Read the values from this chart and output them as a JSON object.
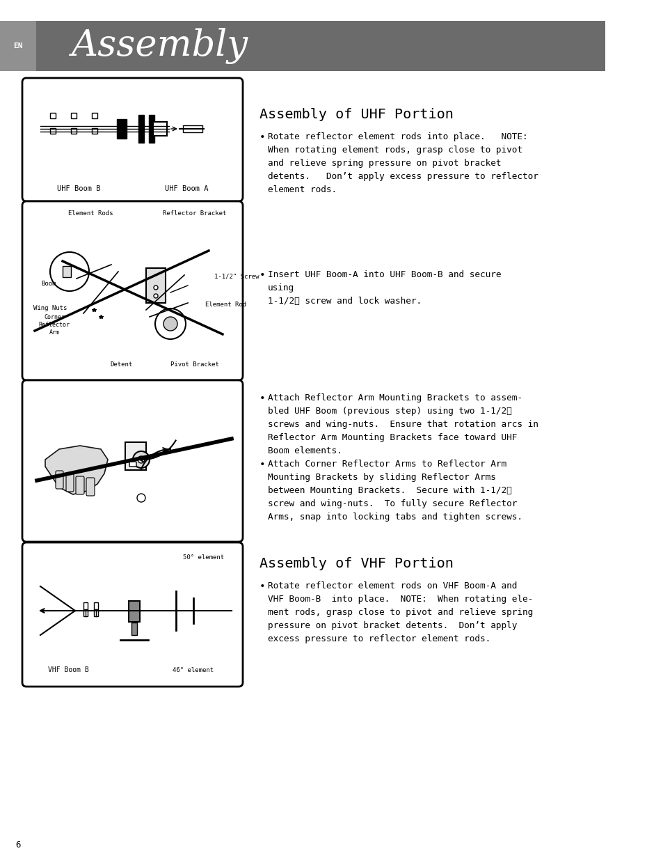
{
  "page_bg": "#ffffff",
  "header_bg": "#6b6b6b",
  "header_light_bg": "#909090",
  "header_text": "Assembly",
  "header_en": "EN",
  "page_number": "6",
  "uhf_title": "Assembly of UHF Portion",
  "uhf_bullet1": "Rotate reflector element rods into place.   NOTE:\nWhen rotating element rods, grasp close to pivot\nand relieve spring pressure on pivot bracket\ndetents.   Don’t apply excess pressure to reflector\nelement rods.",
  "uhf_bullet2": "Insert UHF Boom-A into UHF Boom-B and secure\nusing\n1-1/2ʺ screw and lock washer.",
  "uhf_bullet3a": "Attach Reflector Arm Mounting Brackets to assem-\nbled UHF Boom (previous step) using two 1-1/2ʺ\nscrews and wing-nuts.  Ensure that rotation arcs in\nReflector Arm Mounting Brackets face toward UHF\nBoom elements.",
  "uhf_bullet3b": "Attach Corner Reflector Arms to Reflector Arm\nMounting Brackets by sliding Reflector Arms\nbetween Mounting Brackets.  Secure with 1-1/2ʺ\nscrew and wing-nuts.  To fully secure Reflector\nArms, snap into locking tabs and tighten screws.",
  "vhf_title": "Assembly of VHF Portion",
  "vhf_bullet1": "Rotate reflector element rods on VHF Boom-A and\nVHF Boom-B  into place.  NOTE:  When rotating ele-\nment rods, grasp close to pivot and relieve spring\npressure on pivot bracket detents.  Don’t apply\nexcess pressure to reflector element rods.",
  "font_family": "monospace",
  "title_fontsize": 14.5,
  "body_fontsize": 9.2,
  "header_fontsize": 38,
  "label_fontsize": 6.5
}
